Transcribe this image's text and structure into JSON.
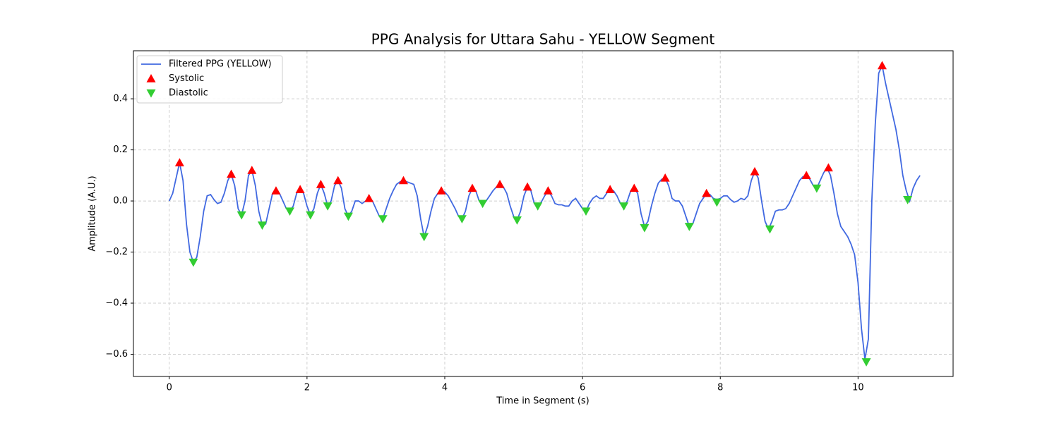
{
  "chart_data": {
    "type": "line",
    "title": "PPG Analysis for Uttara Sahu - YELLOW Segment",
    "x_label": "Time in Segment (s)",
    "y_label": "Amplitude (A.U.)",
    "xlim": [
      -0.52,
      11.38
    ],
    "ylim": [
      -0.687,
      0.588
    ],
    "xticks": [
      0,
      2,
      4,
      6,
      8,
      10
    ],
    "yticks": [
      {
        "value": -0.6,
        "label": "−0.6"
      },
      {
        "value": -0.4,
        "label": "−0.4"
      },
      {
        "value": -0.2,
        "label": "−0.2"
      },
      {
        "value": 0.0,
        "label": "0.0"
      },
      0.2,
      0.4
    ],
    "grid": true,
    "legend": "upper left",
    "series": [
      {
        "name": "Filtered PPG (YELLOW)",
        "type": "line",
        "color": "#4169e1",
        "x": [
          0,
          0.05,
          0.15,
          0.2,
          0.25,
          0.3,
          0.35,
          0.4,
          0.45,
          0.5,
          0.55,
          0.6,
          0.65,
          0.7,
          0.75,
          0.8,
          0.85,
          0.9,
          0.95,
          1.0,
          1.05,
          1.1,
          1.15,
          1.2,
          1.25,
          1.3,
          1.35,
          1.4,
          1.45,
          1.5,
          1.55,
          1.6,
          1.65,
          1.7,
          1.75,
          1.8,
          1.85,
          1.9,
          1.95,
          2.0,
          2.05,
          2.1,
          2.15,
          2.2,
          2.25,
          2.3,
          2.35,
          2.4,
          2.45,
          2.5,
          2.55,
          2.6,
          2.65,
          2.7,
          2.75,
          2.8,
          2.85,
          2.9,
          2.95,
          3.0,
          3.05,
          3.1,
          3.15,
          3.2,
          3.25,
          3.3,
          3.35,
          3.4,
          3.5,
          3.55,
          3.6,
          3.65,
          3.7,
          3.75,
          3.8,
          3.85,
          3.9,
          3.95,
          4.0,
          4.05,
          4.1,
          4.15,
          4.2,
          4.25,
          4.3,
          4.35,
          4.4,
          4.45,
          4.5,
          4.55,
          4.6,
          4.65,
          4.7,
          4.75,
          4.8,
          4.85,
          4.9,
          4.95,
          5.0,
          5.05,
          5.1,
          5.15,
          5.2,
          5.25,
          5.3,
          5.35,
          5.4,
          5.45,
          5.5,
          5.55,
          5.6,
          5.65,
          5.7,
          5.75,
          5.8,
          5.85,
          5.9,
          5.95,
          6.0,
          6.05,
          6.1,
          6.15,
          6.2,
          6.25,
          6.3,
          6.35,
          6.4,
          6.45,
          6.5,
          6.55,
          6.6,
          6.65,
          6.7,
          6.75,
          6.8,
          6.85,
          6.9,
          6.95,
          7.0,
          7.05,
          7.1,
          7.15,
          7.2,
          7.25,
          7.3,
          7.35,
          7.4,
          7.45,
          7.5,
          7.55,
          7.6,
          7.65,
          7.7,
          7.75,
          7.8,
          7.85,
          7.9,
          7.95,
          8.0,
          8.05,
          8.1,
          8.15,
          8.2,
          8.25,
          8.3,
          8.35,
          8.4,
          8.45,
          8.5,
          8.55,
          8.6,
          8.65,
          8.7,
          8.75,
          8.8,
          8.85,
          8.9,
          8.95,
          9.0,
          9.05,
          9.1,
          9.15,
          9.2,
          9.25,
          9.3,
          9.35,
          9.4,
          9.45,
          9.5,
          9.55,
          9.6,
          9.65,
          9.7,
          9.75,
          9.8,
          9.85,
          9.9,
          9.95,
          10.0,
          10.05,
          10.1,
          10.15,
          10.2,
          10.25,
          10.3,
          10.35,
          10.4,
          10.45,
          10.5,
          10.55,
          10.6,
          10.65,
          10.7,
          10.75,
          10.8,
          10.85,
          10.9
        ],
        "values": [
          0,
          0.03,
          0.15,
          0.08,
          -0.09,
          -0.2,
          -0.24,
          -0.22,
          -0.14,
          -0.04,
          0.02,
          0.025,
          0.005,
          -0.01,
          -0.005,
          0.03,
          0.08,
          0.105,
          0.06,
          -0.03,
          -0.055,
          0,
          0.1,
          0.12,
          0.06,
          -0.04,
          -0.095,
          -0.09,
          -0.03,
          0.03,
          0.04,
          0.03,
          0,
          -0.03,
          -0.04,
          -0.02,
          0.03,
          0.045,
          0.03,
          -0.02,
          -0.055,
          -0.03,
          0.03,
          0.065,
          0.03,
          -0.02,
          0,
          0.06,
          0.08,
          0.05,
          -0.03,
          -0.06,
          -0.04,
          0,
          0,
          -0.01,
          0,
          0.01,
          0,
          -0.03,
          -0.06,
          -0.07,
          -0.03,
          0.01,
          0.04,
          0.065,
          0.075,
          0.08,
          0.07,
          0.065,
          0.02,
          -0.07,
          -0.14,
          -0.1,
          -0.04,
          0.01,
          0.03,
          0.04,
          0.035,
          0.02,
          -0.005,
          -0.03,
          -0.06,
          -0.07,
          -0.04,
          0.02,
          0.05,
          0.04,
          0,
          -0.01,
          0,
          0.02,
          0.04,
          0.055,
          0.065,
          0.055,
          0.03,
          -0.02,
          -0.06,
          -0.075,
          -0.04,
          0.02,
          0.055,
          0.04,
          -0.01,
          -0.02,
          -0.005,
          0.02,
          0.04,
          0.02,
          -0.01,
          -0.015,
          -0.015,
          -0.02,
          -0.02,
          0,
          0.01,
          -0.01,
          -0.03,
          -0.04,
          -0.01,
          0.01,
          0.02,
          0.01,
          0.01,
          0.03,
          0.045,
          0.04,
          0.02,
          -0.01,
          -0.02,
          0,
          0.04,
          0.05,
          0.03,
          -0.05,
          -0.1,
          -0.08,
          -0.02,
          0.03,
          0.07,
          0.085,
          0.09,
          0.06,
          0.01,
          0,
          0,
          -0.02,
          -0.06,
          -0.1,
          -0.09,
          -0.05,
          -0.01,
          0.01,
          0.03,
          0.025,
          0.01,
          0.005,
          0.01,
          0.02,
          0.02,
          0.005,
          -0.005,
          0,
          0.01,
          0.005,
          0.02,
          0.08,
          0.115,
          0.09,
          0,
          -0.08,
          -0.11,
          -0.08,
          -0.04,
          -0.035,
          -0.035,
          -0.03,
          -0.01,
          0.02,
          0.05,
          0.08,
          0.095,
          0.1,
          0.085,
          0.06,
          0.05,
          0.08,
          0.11,
          0.13,
          0.1,
          0.03,
          -0.05,
          -0.1,
          -0.12,
          -0.14,
          -0.17,
          -0.21,
          -0.32,
          -0.5,
          -0.62,
          -0.54,
          0,
          0.3,
          0.5,
          0.53,
          0.46,
          0.4,
          0.34,
          0.28,
          0.2,
          0.1,
          0.04,
          0,
          0.05,
          0.08,
          0.1
        ]
      },
      {
        "name": "Systolic",
        "type": "scatter",
        "marker": "triangle-up",
        "color": "#ff0000",
        "x": [
          0.15,
          0.9,
          1.2,
          1.55,
          1.9,
          2.2,
          2.45,
          2.9,
          3.4,
          3.95,
          4.4,
          4.8,
          5.2,
          5.5,
          6.4,
          6.75,
          7.2,
          7.8,
          8.5,
          9.25,
          9.57,
          10.35
        ],
        "values": [
          0.15,
          0.105,
          0.12,
          0.04,
          0.045,
          0.065,
          0.08,
          0.01,
          0.08,
          0.04,
          0.05,
          0.065,
          0.055,
          0.04,
          0.045,
          0.05,
          0.09,
          0.03,
          0.115,
          0.1,
          0.13,
          0.53
        ]
      },
      {
        "name": "Diastolic",
        "type": "scatter",
        "marker": "triangle-down",
        "color": "#32cd32",
        "x": [
          0.35,
          1.05,
          1.35,
          1.75,
          2.05,
          2.3,
          2.6,
          3.1,
          3.7,
          4.25,
          4.55,
          5.05,
          5.35,
          6.05,
          6.6,
          6.9,
          7.55,
          7.95,
          8.72,
          9.4,
          10.12,
          10.72
        ],
        "values": [
          -0.24,
          -0.055,
          -0.095,
          -0.04,
          -0.055,
          -0.02,
          -0.06,
          -0.07,
          -0.14,
          -0.07,
          -0.01,
          -0.075,
          -0.02,
          -0.04,
          -0.02,
          -0.105,
          -0.1,
          -0.005,
          -0.11,
          0.05,
          -0.63,
          0.005
        ]
      }
    ]
  }
}
